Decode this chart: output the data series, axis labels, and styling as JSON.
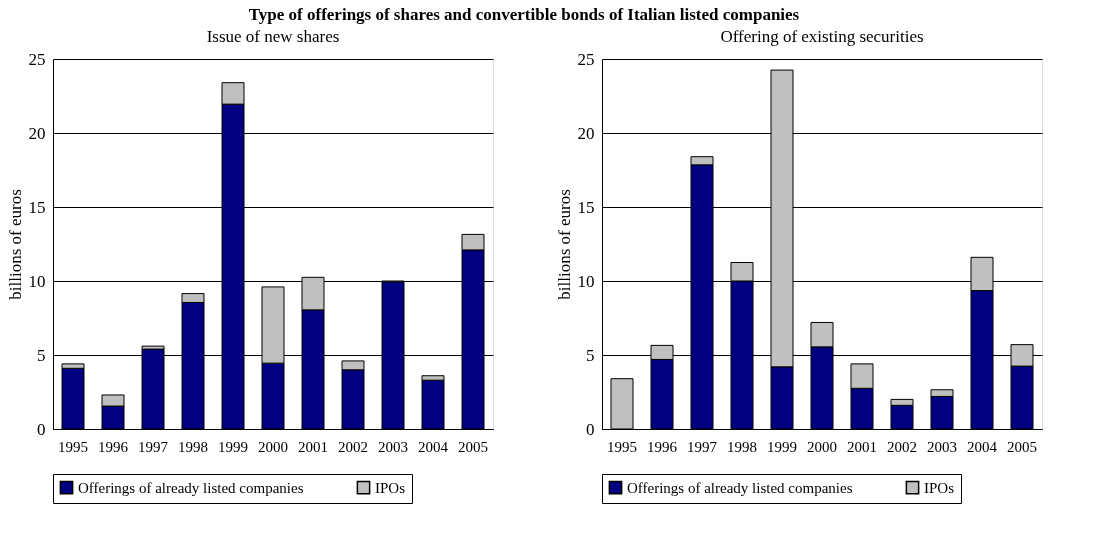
{
  "chart_data": [
    {
      "type": "bar",
      "title": "Type of offerings of shares and convertible bonds of Italian listed companies",
      "subtitle": "Issue of new shares",
      "ylabel": "billions of euros",
      "categories": [
        "1995",
        "1996",
        "1997",
        "1998",
        "1999",
        "2000",
        "2001",
        "2002",
        "2003",
        "2004",
        "2005"
      ],
      "stacked": true,
      "ylim": [
        0,
        25
      ],
      "yticks": [
        0,
        5,
        10,
        15,
        20,
        25
      ],
      "grid": "y",
      "legend": "bottom",
      "series": [
        {
          "name": "Offerings of already listed companies",
          "color": "#000080",
          "values": [
            4.1,
            1.55,
            5.4,
            8.55,
            21.95,
            4.45,
            8.05,
            4.0,
            9.95,
            3.3,
            12.1
          ]
        },
        {
          "name": "IPOs",
          "color": "#c0c0c0",
          "values": [
            0.3,
            0.75,
            0.2,
            0.6,
            1.45,
            5.15,
            2.2,
            0.6,
            0.05,
            0.3,
            1.05
          ]
        }
      ]
    },
    {
      "type": "bar",
      "subtitle": "Offering of existing securities",
      "ylabel": "billions of euros",
      "categories": [
        "1995",
        "1996",
        "1997",
        "1998",
        "1999",
        "2000",
        "2001",
        "2002",
        "2003",
        "2004",
        "2005"
      ],
      "stacked": true,
      "ylim": [
        0,
        25
      ],
      "yticks": [
        0,
        5,
        10,
        15,
        20,
        25
      ],
      "grid": "y",
      "legend": "bottom",
      "series": [
        {
          "name": "Offerings of already listed companies",
          "color": "#000080",
          "values": [
            0,
            4.7,
            17.85,
            10.0,
            4.2,
            5.55,
            2.75,
            1.6,
            2.2,
            9.35,
            4.25
          ]
        },
        {
          "name": "IPOs",
          "color": "#c0c0c0",
          "values": [
            3.4,
            0.95,
            0.55,
            1.25,
            20.05,
            1.65,
            1.65,
            0.4,
            0.45,
            2.25,
            1.45
          ]
        }
      ]
    }
  ]
}
